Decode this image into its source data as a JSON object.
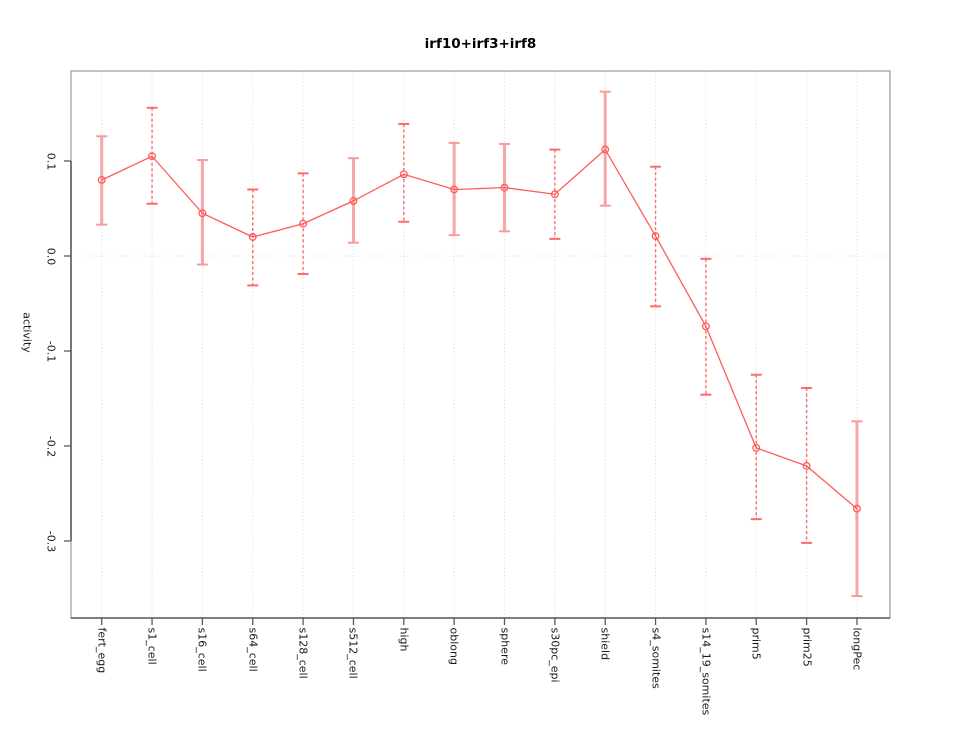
{
  "chart_data": {
    "type": "line",
    "title": "irf10+irf3+irf8",
    "xlabel": "",
    "ylabel": "activity",
    "categories": [
      "fert_egg",
      "s1_cell",
      "s16_cell",
      "s64_cell",
      "s128_cell",
      "s512_cell",
      "high",
      "oblong",
      "sphere",
      "s30pc_epi",
      "shield",
      "s4_somites",
      "s14_19_somites",
      "prim5",
      "prim25",
      "longPec"
    ],
    "series": [
      {
        "name": "activity",
        "values": [
          0.08,
          0.105,
          0.045,
          0.02,
          0.034,
          0.058,
          0.086,
          0.07,
          0.072,
          0.065,
          0.112,
          0.021,
          -0.074,
          -0.202,
          -0.221,
          -0.266
        ],
        "err_low": [
          0.033,
          0.055,
          -0.009,
          -0.031,
          -0.019,
          0.014,
          0.036,
          0.022,
          0.026,
          0.018,
          0.053,
          -0.053,
          -0.146,
          -0.277,
          -0.302,
          -0.358
        ],
        "err_high": [
          0.126,
          0.156,
          0.101,
          0.07,
          0.087,
          0.103,
          0.139,
          0.119,
          0.118,
          0.112,
          0.173,
          0.094,
          -0.003,
          -0.125,
          -0.139,
          -0.174
        ]
      }
    ],
    "error_bar_styles": [
      "thick",
      "dotted",
      "thick",
      "dotted",
      "dotted",
      "thick",
      "dotted",
      "thick",
      "thick",
      "dotted",
      "thick",
      "dotted",
      "dotted",
      "dotted",
      "dotted",
      "thick"
    ],
    "y_tick_labels": [
      "0.1",
      "0.0",
      "-0.1",
      "-0.2",
      "-0.3"
    ],
    "y_tick_values": [
      0.1,
      0.0,
      -0.1,
      -0.2,
      -0.3
    ],
    "ylim": [
      -0.381,
      0.195
    ],
    "grid": "dotted vertical line per category; dotted horizontal line at y=0",
    "legend": "none",
    "marker": "open-circle",
    "colors": {
      "line": "#ff5a5a",
      "point": "#ff5a5a",
      "whisker_thick": "#f5a6a6",
      "whisker_dotted": "#ff6b6b",
      "grid": "#d9d9d9",
      "axis": "#5a5a5a",
      "box": "#9a9a9a",
      "text": "#1a1a1a"
    }
  }
}
